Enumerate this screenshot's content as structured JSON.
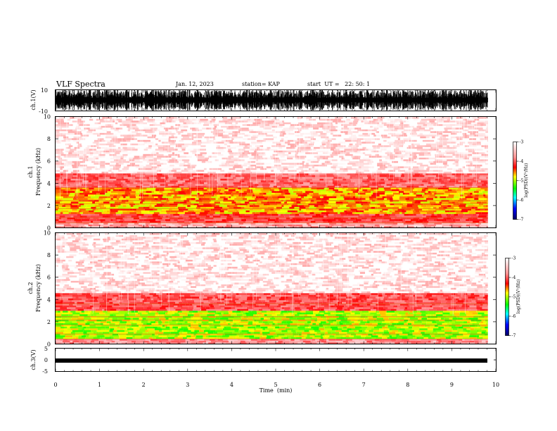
{
  "header": {
    "title": "VLF Spectra",
    "date": "Jan. 12, 2023",
    "station": "station= KAP",
    "start_time": "start  UT =   22: 50: 1"
  },
  "chart_data": [
    {
      "type": "line",
      "name": "ch.1 waveform",
      "ylabel": "ch.1(V)",
      "ylim": [
        -10,
        10
      ],
      "yticks": [
        "10",
        "-10"
      ],
      "xlim": [
        0,
        10
      ],
      "description": "dense high-amplitude oscillation spanning nearly the full range for 0-9.8 min"
    },
    {
      "type": "heatmap",
      "name": "ch.1 spectrogram",
      "ylabel": "ch.1\nFrequency  (kHz)",
      "ylim": [
        0,
        10
      ],
      "yticks": [
        "0",
        "2",
        "4",
        "6",
        "8",
        "10"
      ],
      "xlim": [
        0,
        10
      ],
      "colorbar": {
        "label": "log(PSD)(V²/Hz)",
        "range": [
          -7,
          -3
        ],
        "ticks": [
          "-3",
          "-4",
          "-5",
          "-6",
          "-7"
        ]
      },
      "bands_khz": [
        {
          "from": 0,
          "to": 0.4,
          "level": -3.5
        },
        {
          "from": 0.4,
          "to": 1.2,
          "level": -4.0
        },
        {
          "from": 1.2,
          "to": 3.6,
          "level": -4.6
        },
        {
          "from": 3.6,
          "to": 5.0,
          "level": -3.8
        },
        {
          "from": 5.0,
          "to": 10.0,
          "level": -3.1
        }
      ]
    },
    {
      "type": "heatmap",
      "name": "ch.2 spectrogram",
      "ylabel": "ch.2\nFrequency  (kHz)",
      "ylim": [
        0,
        10
      ],
      "yticks": [
        "0",
        "2",
        "4",
        "6",
        "8",
        "10"
      ],
      "xlim": [
        0,
        10
      ],
      "colorbar": {
        "label": "log(PSD)(V²/Hz)",
        "range": [
          -7,
          -3
        ],
        "ticks": [
          "-3",
          "-4",
          "-5",
          "-6",
          "-7"
        ]
      },
      "bands_khz": [
        {
          "from": 0,
          "to": 0.4,
          "level": -3.6
        },
        {
          "from": 0.4,
          "to": 3.0,
          "level": -5.0
        },
        {
          "from": 3.0,
          "to": 4.6,
          "level": -3.9
        },
        {
          "from": 4.6,
          "to": 10.0,
          "level": -3.1
        }
      ]
    },
    {
      "type": "line",
      "name": "ch.3 waveform",
      "ylabel": "ch.3(V)",
      "ylim": [
        -5,
        5
      ],
      "yticks": [
        "5",
        "0",
        "-5"
      ],
      "xlim": [
        0,
        10
      ],
      "description": "narrow band around -1 V spanning 0-9.8 min"
    }
  ],
  "xaxis": {
    "label": "Time  (min)",
    "ticks": [
      "0",
      "1",
      "2",
      "3",
      "4",
      "5",
      "6",
      "7",
      "8",
      "9",
      "10"
    ]
  },
  "colors": {
    "red": "#ff0000",
    "light_red": "#ffb0b0",
    "yellow": "#ffff00",
    "green": "#00ff00",
    "cyan": "#00ffff",
    "blue": "#0000ff",
    "navy": "#000080"
  }
}
